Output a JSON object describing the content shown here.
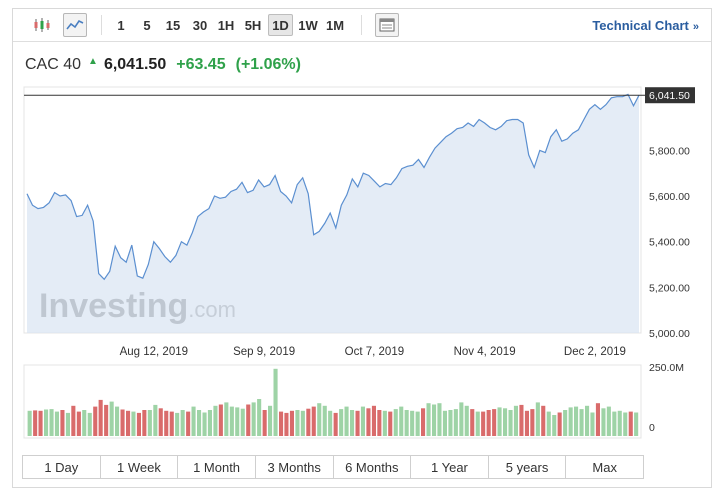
{
  "toolbar": {
    "candlestick_icon": "candlestick-icon",
    "line_icon": "line-chart-icon",
    "intervals": [
      "1",
      "5",
      "15",
      "30",
      "1H",
      "5H",
      "1D",
      "1W",
      "1M"
    ],
    "active_interval": "1D",
    "table_icon": "table-icon",
    "technical_chart_label": "Technical Chart",
    "technical_chart_arrow": "»"
  },
  "quote": {
    "name": "CAC 40",
    "direction_icon": "up-arrow-icon",
    "price": "6,041.50",
    "change": "+63.45",
    "change_pct": "(+1.06%)",
    "up_color": "#2fa14a"
  },
  "chart_data": {
    "type": "area",
    "price_label": "6,041.50",
    "y_ticks": [
      "5,000.00",
      "5,200.00",
      "5,400.00",
      "5,600.00",
      "5,800.00"
    ],
    "x_ticks": [
      "Aug 12, 2019",
      "Sep 9, 2019",
      "Oct 7, 2019",
      "Nov 4, 2019",
      "Dec 2, 2019"
    ],
    "ylim": [
      5000,
      6060
    ],
    "values": [
      5610,
      5560,
      5545,
      5550,
      5570,
      5615,
      5600,
      5605,
      5580,
      5510,
      5515,
      5560,
      5490,
      5260,
      5235,
      5270,
      5380,
      5330,
      5310,
      5385,
      5250,
      5240,
      5300,
      5400,
      5370,
      5335,
      5310,
      5340,
      5400,
      5385,
      5440,
      5510,
      5530,
      5545,
      5600,
      5590,
      5595,
      5620,
      5630,
      5660,
      5615,
      5625,
      5670,
      5640,
      5650,
      5690,
      5620,
      5600,
      5570,
      5650,
      5680,
      5610,
      5430,
      5445,
      5480,
      5525,
      5460,
      5560,
      5605,
      5675,
      5640,
      5700,
      5690,
      5665,
      5640,
      5655,
      5650,
      5680,
      5720,
      5730,
      5735,
      5760,
      5725,
      5770,
      5810,
      5835,
      5860,
      5875,
      5895,
      5900,
      5920,
      5905,
      5935,
      5920,
      5900,
      5890,
      5905,
      5930,
      5935,
      5935,
      5920,
      5780,
      5725,
      5800,
      5790,
      5860,
      5890,
      5840,
      5850,
      5875,
      5890,
      5935,
      5980,
      6000,
      5980,
      6000,
      6030,
      6035,
      6035,
      6045,
      5995,
      6041.5
    ],
    "grid": false,
    "watermark": "Investing.com",
    "volume": {
      "top_label": "250.0M",
      "bottom_label": "0",
      "values": [
        60,
        61,
        60,
        63,
        64,
        58,
        62,
        55,
        72,
        58,
        62,
        55,
        70,
        86,
        74,
        82,
        70,
        63,
        60,
        58,
        55,
        62,
        62,
        74,
        66,
        60,
        58,
        55,
        62,
        58,
        70,
        62,
        56,
        62,
        72,
        75,
        80,
        70,
        68,
        65,
        75,
        80,
        88,
        62,
        72,
        160,
        58,
        55,
        60,
        62,
        60,
        65,
        70,
        78,
        72,
        60,
        55,
        64,
        70,
        62,
        60,
        70,
        66,
        72,
        62,
        60,
        58,
        64,
        70,
        62,
        60,
        58,
        66,
        78,
        75,
        78,
        60,
        62,
        64,
        80,
        72,
        64,
        58,
        58,
        62,
        64,
        68,
        66,
        62,
        72,
        74,
        60,
        64,
        80,
        72,
        58,
        50,
        56,
        62,
        68,
        70,
        64,
        72,
        56,
        78,
        66,
        70,
        58,
        60,
        56,
        58,
        56
      ],
      "up_color": "#9ed3a6",
      "down_color": "#d96b6b"
    }
  },
  "ranges": [
    "1 Day",
    "1 Week",
    "1 Month",
    "3 Months",
    "6 Months",
    "1 Year",
    "5 years",
    "Max"
  ]
}
